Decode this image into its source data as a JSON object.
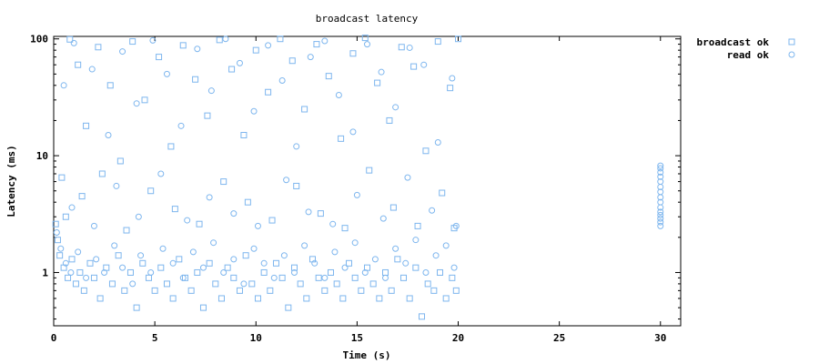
{
  "chart_data": {
    "type": "scatter",
    "title": "broadcast latency",
    "xlabel": "Time (s)",
    "ylabel": "Latency (ms)",
    "xlim": [
      0,
      31
    ],
    "ylim": [
      0.35,
      105
    ],
    "yscale": "log",
    "xticks": [
      0,
      5,
      10,
      15,
      20,
      25,
      30
    ],
    "yticks": [
      1,
      10,
      100
    ],
    "xtick_labels": [
      "0",
      "5",
      "10",
      "15",
      "20",
      "25",
      "30"
    ],
    "ytick_labels": [
      "1",
      "10",
      "100"
    ],
    "legend_position": "top-right, outside plot",
    "grid": false,
    "marker_color": "#7eb6ee",
    "series": [
      {
        "name": "broadcast ok",
        "marker": "square",
        "description": "dense band ~0.5-2 ms over 0-20 s with sparse spread up to 100 ms",
        "points": [
          [
            0.1,
            2.6
          ],
          [
            0.2,
            1.9
          ],
          [
            0.3,
            1.4
          ],
          [
            0.5,
            1.1
          ],
          [
            0.7,
            0.9
          ],
          [
            0.9,
            1.3
          ],
          [
            1.1,
            0.8
          ],
          [
            1.3,
            1.0
          ],
          [
            1.5,
            0.7
          ],
          [
            1.8,
            1.2
          ],
          [
            2.0,
            0.9
          ],
          [
            2.3,
            0.6
          ],
          [
            2.6,
            1.1
          ],
          [
            2.9,
            0.8
          ],
          [
            3.2,
            1.4
          ],
          [
            3.5,
            0.7
          ],
          [
            3.8,
            1.0
          ],
          [
            4.1,
            0.5
          ],
          [
            4.4,
            1.2
          ],
          [
            4.7,
            0.9
          ],
          [
            5.0,
            0.7
          ],
          [
            5.3,
            1.1
          ],
          [
            5.6,
            0.8
          ],
          [
            5.9,
            0.6
          ],
          [
            6.2,
            1.3
          ],
          [
            6.5,
            0.9
          ],
          [
            6.8,
            0.7
          ],
          [
            7.1,
            1.0
          ],
          [
            7.4,
            0.5
          ],
          [
            7.7,
            1.2
          ],
          [
            8.0,
            0.8
          ],
          [
            8.3,
            0.6
          ],
          [
            8.6,
            1.1
          ],
          [
            8.9,
            0.9
          ],
          [
            9.2,
            0.7
          ],
          [
            9.5,
            1.4
          ],
          [
            9.8,
            0.8
          ],
          [
            10.1,
            0.6
          ],
          [
            10.4,
            1.0
          ],
          [
            10.7,
            0.7
          ],
          [
            11.0,
            1.2
          ],
          [
            11.3,
            0.9
          ],
          [
            11.6,
            0.5
          ],
          [
            11.9,
            1.1
          ],
          [
            12.2,
            0.8
          ],
          [
            12.5,
            0.6
          ],
          [
            12.8,
            1.3
          ],
          [
            13.1,
            0.9
          ],
          [
            13.4,
            0.7
          ],
          [
            13.7,
            1.0
          ],
          [
            14.0,
            0.8
          ],
          [
            14.3,
            0.6
          ],
          [
            14.6,
            1.2
          ],
          [
            14.9,
            0.9
          ],
          [
            15.2,
            0.7
          ],
          [
            15.5,
            1.1
          ],
          [
            15.8,
            0.8
          ],
          [
            16.1,
            0.6
          ],
          [
            16.4,
            1.0
          ],
          [
            16.7,
            0.7
          ],
          [
            17.0,
            1.3
          ],
          [
            17.3,
            0.9
          ],
          [
            17.6,
            0.6
          ],
          [
            17.9,
            1.1
          ],
          [
            18.2,
            0.42
          ],
          [
            18.5,
            0.8
          ],
          [
            18.8,
            0.7
          ],
          [
            19.1,
            1.0
          ],
          [
            19.4,
            0.6
          ],
          [
            19.7,
            0.9
          ],
          [
            19.9,
            0.7
          ],
          [
            0.4,
            6.5
          ],
          [
            0.8,
            99
          ],
          [
            1.2,
            60
          ],
          [
            1.6,
            18
          ],
          [
            2.2,
            85
          ],
          [
            2.8,
            40
          ],
          [
            3.3,
            9
          ],
          [
            3.9,
            95
          ],
          [
            4.5,
            30
          ],
          [
            5.2,
            70
          ],
          [
            5.8,
            12
          ],
          [
            6.4,
            88
          ],
          [
            7.0,
            45
          ],
          [
            7.6,
            22
          ],
          [
            8.2,
            98
          ],
          [
            8.8,
            55
          ],
          [
            9.4,
            15
          ],
          [
            10.0,
            80
          ],
          [
            10.6,
            35
          ],
          [
            11.2,
            100
          ],
          [
            11.8,
            65
          ],
          [
            12.4,
            25
          ],
          [
            13.0,
            90
          ],
          [
            13.6,
            48
          ],
          [
            14.2,
            14
          ],
          [
            14.8,
            75
          ],
          [
            15.4,
            102
          ],
          [
            16.0,
            42
          ],
          [
            16.6,
            20
          ],
          [
            17.2,
            85
          ],
          [
            17.8,
            58
          ],
          [
            18.4,
            11
          ],
          [
            19.0,
            95
          ],
          [
            19.6,
            38
          ],
          [
            20.0,
            100
          ],
          [
            0.6,
            3.0
          ],
          [
            1.4,
            4.5
          ],
          [
            2.4,
            7.0
          ],
          [
            3.6,
            2.3
          ],
          [
            4.8,
            5.0
          ],
          [
            6.0,
            3.5
          ],
          [
            7.2,
            2.6
          ],
          [
            8.4,
            6.0
          ],
          [
            9.6,
            4.0
          ],
          [
            10.8,
            2.8
          ],
          [
            12.0,
            5.5
          ],
          [
            13.2,
            3.2
          ],
          [
            14.4,
            2.4
          ],
          [
            15.6,
            7.5
          ],
          [
            16.8,
            3.6
          ],
          [
            18.0,
            2.5
          ],
          [
            19.2,
            4.8
          ],
          [
            19.8,
            2.4
          ]
        ]
      },
      {
        "name": "read ok",
        "marker": "circle",
        "description": "dense band ~0.5-2 ms over 0-20 s with sparse spread up to 100 ms; cluster at t=30 s from ~2.5 to ~8 ms",
        "points": [
          [
            0.15,
            2.2
          ],
          [
            0.35,
            1.6
          ],
          [
            0.6,
            1.2
          ],
          [
            0.85,
            1.0
          ],
          [
            1.2,
            1.5
          ],
          [
            1.6,
            0.9
          ],
          [
            2.1,
            1.3
          ],
          [
            2.5,
            1.0
          ],
          [
            3.0,
            1.7
          ],
          [
            3.4,
            1.1
          ],
          [
            3.9,
            0.8
          ],
          [
            4.3,
            1.4
          ],
          [
            4.8,
            1.0
          ],
          [
            5.4,
            1.6
          ],
          [
            5.9,
            1.2
          ],
          [
            6.4,
            0.9
          ],
          [
            6.9,
            1.5
          ],
          [
            7.4,
            1.1
          ],
          [
            7.9,
            1.8
          ],
          [
            8.4,
            1.0
          ],
          [
            8.9,
            1.3
          ],
          [
            9.4,
            0.8
          ],
          [
            9.9,
            1.6
          ],
          [
            10.4,
            1.2
          ],
          [
            10.9,
            0.9
          ],
          [
            11.4,
            1.4
          ],
          [
            11.9,
            1.0
          ],
          [
            12.4,
            1.7
          ],
          [
            12.9,
            1.2
          ],
          [
            13.4,
            0.9
          ],
          [
            13.9,
            1.5
          ],
          [
            14.4,
            1.1
          ],
          [
            14.9,
            1.8
          ],
          [
            15.4,
            1.0
          ],
          [
            15.9,
            1.3
          ],
          [
            16.4,
            0.9
          ],
          [
            16.9,
            1.6
          ],
          [
            17.4,
            1.2
          ],
          [
            17.9,
            1.9
          ],
          [
            18.4,
            1.0
          ],
          [
            18.9,
            1.4
          ],
          [
            19.4,
            1.7
          ],
          [
            19.8,
            1.1
          ],
          [
            0.5,
            40
          ],
          [
            1.0,
            92
          ],
          [
            1.9,
            55
          ],
          [
            2.7,
            15
          ],
          [
            3.4,
            78
          ],
          [
            4.1,
            28
          ],
          [
            4.9,
            97
          ],
          [
            5.6,
            50
          ],
          [
            6.3,
            18
          ],
          [
            7.1,
            82
          ],
          [
            7.8,
            36
          ],
          [
            8.5,
            100
          ],
          [
            9.2,
            62
          ],
          [
            9.9,
            24
          ],
          [
            10.6,
            88
          ],
          [
            11.3,
            44
          ],
          [
            12.0,
            12
          ],
          [
            12.7,
            70
          ],
          [
            13.4,
            96
          ],
          [
            14.1,
            33
          ],
          [
            14.8,
            16
          ],
          [
            15.5,
            90
          ],
          [
            16.2,
            52
          ],
          [
            16.9,
            26
          ],
          [
            17.6,
            84
          ],
          [
            18.3,
            60
          ],
          [
            19.0,
            13
          ],
          [
            19.7,
            46
          ],
          [
            0.9,
            3.6
          ],
          [
            2.0,
            2.5
          ],
          [
            3.1,
            5.5
          ],
          [
            4.2,
            3.0
          ],
          [
            5.3,
            7.0
          ],
          [
            6.6,
            2.8
          ],
          [
            7.7,
            4.4
          ],
          [
            8.9,
            3.2
          ],
          [
            10.1,
            2.5
          ],
          [
            11.5,
            6.2
          ],
          [
            12.6,
            3.3
          ],
          [
            13.8,
            2.6
          ],
          [
            15.0,
            4.6
          ],
          [
            16.3,
            2.9
          ],
          [
            17.5,
            6.5
          ],
          [
            18.7,
            3.4
          ],
          [
            19.9,
            2.5
          ],
          [
            30.0,
            2.5
          ],
          [
            30.0,
            2.7
          ],
          [
            30.0,
            2.9
          ],
          [
            30.0,
            3.1
          ],
          [
            30.0,
            3.3
          ],
          [
            30.0,
            3.6
          ],
          [
            30.0,
            4.0
          ],
          [
            30.0,
            4.4
          ],
          [
            30.0,
            4.9
          ],
          [
            30.0,
            5.4
          ],
          [
            30.0,
            6.0
          ],
          [
            30.0,
            6.6
          ],
          [
            30.0,
            7.2
          ],
          [
            30.0,
            7.8
          ],
          [
            30.0,
            8.2
          ]
        ]
      }
    ]
  }
}
